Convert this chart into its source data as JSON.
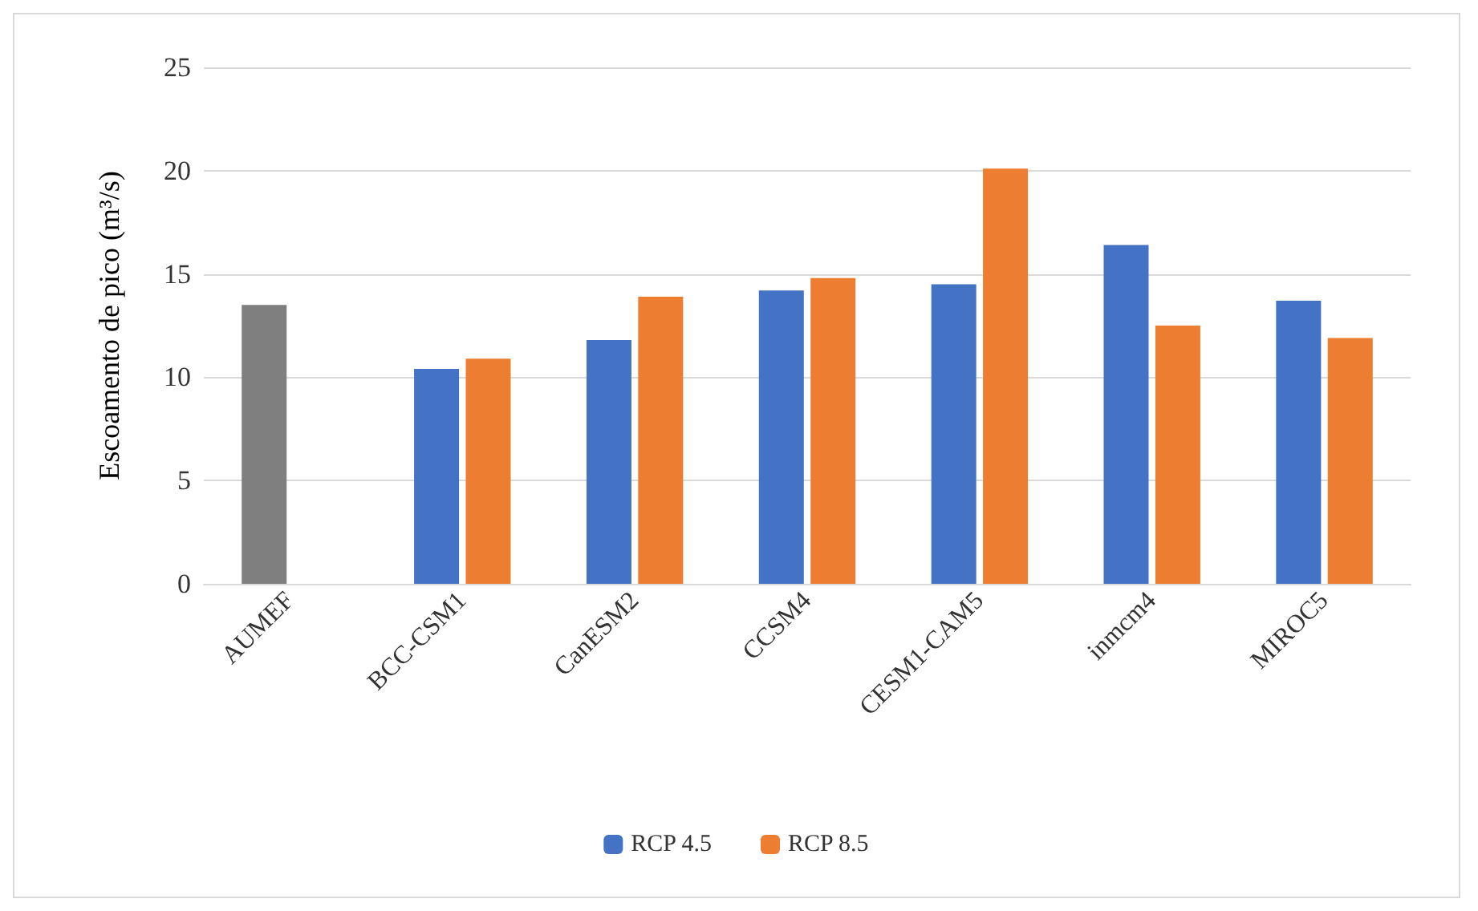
{
  "chart_data": {
    "type": "bar",
    "ylabel": "Escoamento de pico (m³/s)",
    "categories": [
      "AUMEF",
      "BCC-CSM1",
      "CanESM2",
      "CCSM4",
      "CESM1-CAM5",
      "inmcm4",
      "MIROC5"
    ],
    "series": [
      {
        "name": "RCP 4.5",
        "color": "#4472c4",
        "colors": [
          "#7f7f7f",
          "#4472c4",
          "#4472c4",
          "#4472c4",
          "#4472c4",
          "#4472c4",
          "#4472c4"
        ],
        "values": [
          13.5,
          10.4,
          11.8,
          14.2,
          14.5,
          16.4,
          13.7
        ]
      },
      {
        "name": "RCP 8.5",
        "color": "#ed7d31",
        "values": [
          null,
          10.9,
          13.9,
          14.8,
          20.1,
          12.5,
          11.9
        ]
      }
    ],
    "ylim": [
      0,
      25
    ],
    "yticks": [
      0,
      5,
      10,
      15,
      20,
      25
    ],
    "grid": "y",
    "legend": "bottom"
  }
}
